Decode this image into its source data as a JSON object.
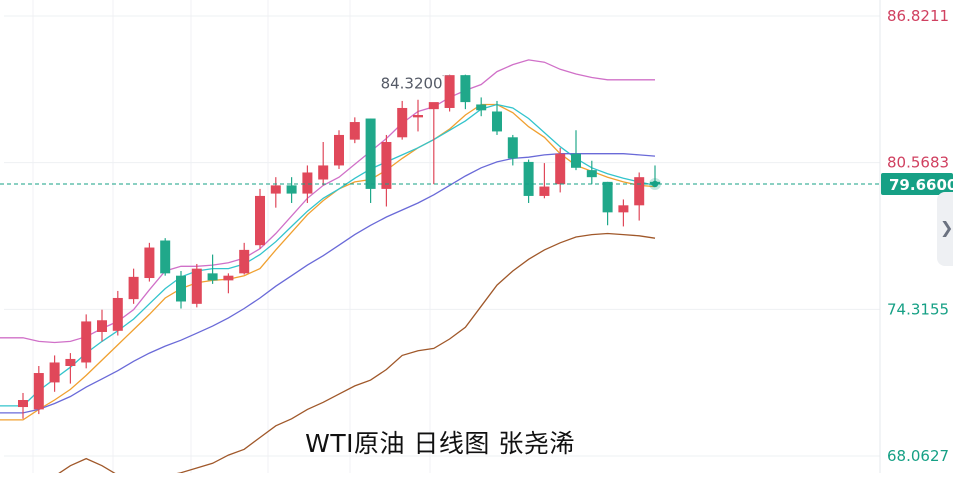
{
  "caption": "WTI原油 日线图 张尧浠",
  "current_price_label": "79.6600",
  "high_marker_label": "84.3200",
  "icons": {
    "side_handle": "chevron-right-icon"
  },
  "colors": {
    "up": "#e0485a",
    "down": "#20a88a",
    "ma_orange": "#f0a030",
    "ma_cyan": "#33c4cc",
    "ma_blue": "#6a6ad8",
    "band_upper": "#d070c8",
    "band_lower": "#a0582a",
    "price_line": "#16a085",
    "axis_red": "#d04060",
    "axis_green": "#16a085"
  },
  "chart_data": {
    "type": "candlestick",
    "title": "WTI原油 日线图 张尧浠",
    "y_axis": {
      "ticks": [
        {
          "value": 86.8211,
          "label": "86.8211",
          "tone": "red"
        },
        {
          "value": 80.5683,
          "label": "80.5683",
          "tone": "red"
        },
        {
          "value": 74.3155,
          "label": "74.3155",
          "tone": "green"
        },
        {
          "value": 68.0627,
          "label": "68.0627",
          "tone": "green"
        }
      ],
      "ylim": [
        68.0627,
        86.8211
      ]
    },
    "current_price": 79.66,
    "period_high": 84.32,
    "candles": [
      {
        "o": 70.15,
        "h": 70.75,
        "l": 69.65,
        "c": 70.45
      },
      {
        "o": 70.05,
        "h": 71.9,
        "l": 69.85,
        "c": 71.6
      },
      {
        "o": 71.2,
        "h": 72.35,
        "l": 70.8,
        "c": 72.05
      },
      {
        "o": 71.9,
        "h": 72.45,
        "l": 71.15,
        "c": 72.2
      },
      {
        "o": 72.05,
        "h": 74.1,
        "l": 71.8,
        "c": 73.8
      },
      {
        "o": 73.35,
        "h": 74.3,
        "l": 72.95,
        "c": 73.85
      },
      {
        "o": 73.4,
        "h": 75.1,
        "l": 73.2,
        "c": 74.8
      },
      {
        "o": 74.75,
        "h": 76.05,
        "l": 74.55,
        "c": 75.7
      },
      {
        "o": 75.65,
        "h": 77.15,
        "l": 75.5,
        "c": 76.95
      },
      {
        "o": 77.25,
        "h": 77.35,
        "l": 75.75,
        "c": 75.85
      },
      {
        "o": 75.75,
        "h": 75.95,
        "l": 74.35,
        "c": 74.65
      },
      {
        "o": 74.55,
        "h": 76.25,
        "l": 74.4,
        "c": 76.05
      },
      {
        "o": 75.85,
        "h": 76.65,
        "l": 75.4,
        "c": 75.55
      },
      {
        "o": 75.55,
        "h": 75.85,
        "l": 75.0,
        "c": 75.75
      },
      {
        "o": 75.85,
        "h": 77.15,
        "l": 75.8,
        "c": 76.85
      },
      {
        "o": 77.05,
        "h": 79.45,
        "l": 76.9,
        "c": 79.15
      },
      {
        "o": 79.25,
        "h": 79.95,
        "l": 78.65,
        "c": 79.6
      },
      {
        "o": 79.6,
        "h": 79.95,
        "l": 78.85,
        "c": 79.25
      },
      {
        "o": 79.25,
        "h": 80.45,
        "l": 78.85,
        "c": 80.15
      },
      {
        "o": 79.85,
        "h": 81.45,
        "l": 79.6,
        "c": 80.45
      },
      {
        "o": 80.45,
        "h": 81.95,
        "l": 80.3,
        "c": 81.75
      },
      {
        "o": 81.55,
        "h": 82.5,
        "l": 81.4,
        "c": 82.3
      },
      {
        "o": 82.45,
        "h": 82.45,
        "l": 78.85,
        "c": 79.45
      },
      {
        "o": 79.45,
        "h": 81.75,
        "l": 78.7,
        "c": 81.45
      },
      {
        "o": 81.65,
        "h": 83.2,
        "l": 81.55,
        "c": 82.9
      },
      {
        "o": 82.5,
        "h": 83.25,
        "l": 81.9,
        "c": 82.6
      },
      {
        "o": 82.85,
        "h": 83.05,
        "l": 79.65,
        "c": 83.15
      },
      {
        "o": 82.9,
        "h": 84.32,
        "l": 82.75,
        "c": 84.3
      },
      {
        "o": 84.3,
        "h": 84.32,
        "l": 82.85,
        "c": 83.15
      },
      {
        "o": 83.05,
        "h": 83.35,
        "l": 82.55,
        "c": 82.8
      },
      {
        "o": 82.75,
        "h": 83.2,
        "l": 81.75,
        "c": 81.9
      },
      {
        "o": 81.65,
        "h": 81.75,
        "l": 80.45,
        "c": 80.75
      },
      {
        "o": 80.6,
        "h": 80.7,
        "l": 78.85,
        "c": 79.15
      },
      {
        "o": 79.15,
        "h": 80.55,
        "l": 79.05,
        "c": 79.55
      },
      {
        "o": 79.65,
        "h": 81.2,
        "l": 79.3,
        "c": 80.95
      },
      {
        "o": 80.95,
        "h": 81.95,
        "l": 80.25,
        "c": 80.35
      },
      {
        "o": 80.25,
        "h": 80.65,
        "l": 79.65,
        "c": 79.95
      },
      {
        "o": 79.75,
        "h": 79.75,
        "l": 77.9,
        "c": 78.45
      },
      {
        "o": 78.45,
        "h": 79.0,
        "l": 77.85,
        "c": 78.75
      },
      {
        "o": 78.75,
        "h": 80.15,
        "l": 78.1,
        "c": 79.95
      },
      {
        "o": 79.75,
        "h": 80.45,
        "l": 79.55,
        "c": 79.66
      }
    ],
    "series": [
      {
        "values": [
          73.1,
          72.95,
          72.9,
          72.95,
          73.15,
          73.5,
          73.8,
          74.3,
          75.15,
          75.95,
          76.15,
          76.15,
          76.2,
          76.3,
          76.5,
          76.9,
          77.55,
          78.3,
          79.05,
          79.6,
          79.95,
          80.5,
          81.05,
          81.6,
          82.25,
          82.75,
          82.95,
          83.35,
          83.65,
          83.9,
          84.45,
          84.75,
          84.95,
          84.85,
          84.55,
          84.35,
          84.2,
          84.1,
          84.1,
          84.1,
          84.1
        ]
      },
      {
        "values": [
          69.6,
          70.05,
          70.45,
          70.9,
          71.5,
          72.15,
          72.8,
          73.45,
          74.1,
          74.8,
          75.2,
          75.45,
          75.55,
          75.6,
          75.75,
          76.05,
          76.85,
          77.6,
          78.35,
          78.95,
          79.45,
          79.75,
          79.85,
          80.25,
          80.75,
          81.2,
          81.55,
          82.0,
          82.6,
          83.05,
          83.05,
          82.7,
          82.1,
          81.65,
          80.95,
          80.45,
          80.2,
          79.95,
          79.75,
          79.6,
          79.55
        ]
      },
      {
        "values": [
          70.2,
          70.85,
          71.35,
          71.85,
          72.45,
          72.95,
          73.4,
          73.9,
          74.55,
          75.2,
          75.7,
          75.95,
          76.05,
          76.05,
          76.25,
          76.65,
          77.2,
          77.85,
          78.5,
          79.05,
          79.45,
          79.9,
          80.3,
          80.6,
          80.9,
          81.2,
          81.55,
          81.95,
          82.35,
          82.85,
          83.05,
          82.9,
          82.45,
          81.85,
          81.25,
          80.75,
          80.35,
          80.1,
          79.9,
          79.75,
          79.6
        ]
      },
      {
        "values": [
          69.9,
          70.05,
          70.3,
          70.6,
          71.0,
          71.35,
          71.7,
          72.1,
          72.45,
          72.75,
          73.0,
          73.3,
          73.6,
          73.95,
          74.35,
          74.8,
          75.3,
          75.75,
          76.2,
          76.6,
          77.05,
          77.5,
          77.9,
          78.25,
          78.55,
          78.85,
          79.2,
          79.6,
          80.0,
          80.35,
          80.6,
          80.75,
          80.8,
          80.9,
          80.95,
          80.95,
          80.95,
          80.95,
          80.95,
          80.9,
          80.85
        ]
      },
      {
        "values": [
          67.25,
          67.1,
          67.2,
          67.65,
          67.95,
          67.65,
          67.25,
          67.05,
          67.1,
          67.2,
          67.35,
          67.55,
          67.75,
          68.1,
          68.35,
          68.85,
          69.35,
          69.65,
          70.05,
          70.35,
          70.7,
          71.05,
          71.3,
          71.75,
          72.35,
          72.55,
          72.65,
          73.05,
          73.55,
          74.45,
          75.35,
          75.95,
          76.45,
          76.85,
          77.15,
          77.4,
          77.5,
          77.55,
          77.5,
          77.45,
          77.35
        ]
      }
    ]
  }
}
